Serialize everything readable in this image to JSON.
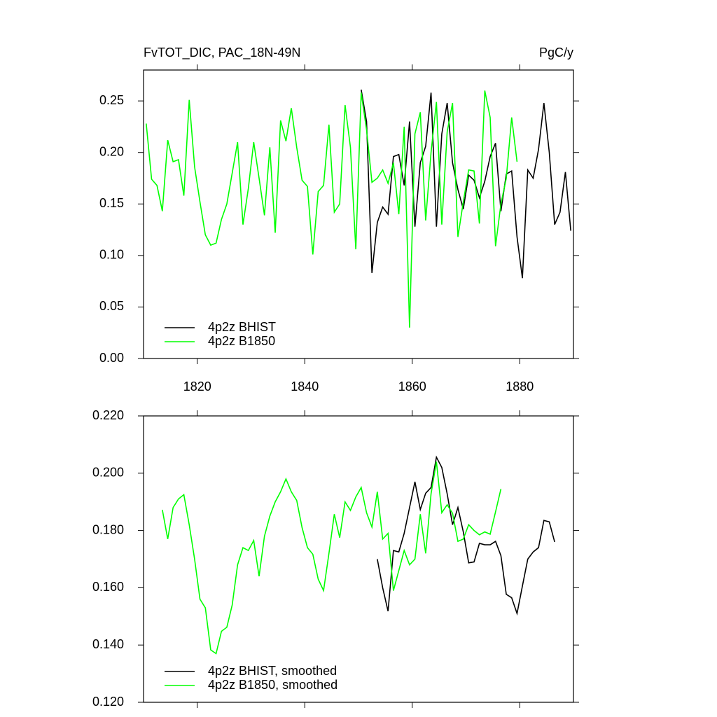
{
  "chart_data": [
    {
      "type": "line",
      "title": "FvTOT_DIC, PAC_18N-49N",
      "right_title": "PgC/y",
      "xlim": [
        1810,
        1890
      ],
      "xticks": [
        1820,
        1840,
        1860,
        1880
      ],
      "xtick_labels": true,
      "ylim": [
        0,
        0.28
      ],
      "yticks": [
        {
          "value": 0,
          "label": "0.00"
        },
        0.05,
        {
          "value": 0.1,
          "label": "0.10"
        },
        0.15,
        {
          "value": 0.2,
          "label": "0.20"
        },
        0.25
      ],
      "legend": "lower left",
      "series": [
        {
          "name": "4p2z BHIST",
          "color": "#000000",
          "x": [
            1850.5,
            1851.5,
            1852.5,
            1853.5,
            1854.5,
            1855.5,
            1856.5,
            1857.5,
            1858.5,
            1859.5,
            1860.5,
            1861.5,
            1862.5,
            1863.5,
            1864.5,
            1865.5,
            1866.5,
            1867.5,
            1868.5,
            1869.5,
            1870.5,
            1871.5,
            1872.5,
            1873.5,
            1874.5,
            1875.5,
            1876.5,
            1877.5,
            1878.5,
            1879.5,
            1880.5,
            1881.5,
            1882.5,
            1883.5,
            1884.5,
            1885.5,
            1886.5,
            1887.5,
            1888.5,
            1889.5
          ],
          "values": [
            0.261,
            0.23,
            0.083,
            0.132,
            0.147,
            0.14,
            0.196,
            0.198,
            0.168,
            0.23,
            0.128,
            0.19,
            0.206,
            0.258,
            0.128,
            0.218,
            0.248,
            0.19,
            0.164,
            0.145,
            0.178,
            0.173,
            0.156,
            0.172,
            0.196,
            0.209,
            0.143,
            0.179,
            0.182,
            0.118,
            0.078,
            0.183,
            0.175,
            0.203,
            0.248,
            0.2,
            0.13,
            0.142,
            0.181,
            0.124
          ]
        },
        {
          "name": "4p2z B1850",
          "color": "#00ff00",
          "x": [
            1810.5,
            1811.5,
            1812.5,
            1813.5,
            1814.5,
            1815.5,
            1816.5,
            1817.5,
            1818.5,
            1819.5,
            1820.5,
            1821.5,
            1822.5,
            1823.5,
            1824.5,
            1825.5,
            1826.5,
            1827.5,
            1828.5,
            1829.5,
            1830.5,
            1831.5,
            1832.5,
            1833.5,
            1834.5,
            1835.5,
            1836.5,
            1837.5,
            1838.5,
            1839.5,
            1840.5,
            1841.5,
            1842.5,
            1843.5,
            1844.5,
            1845.5,
            1846.5,
            1847.5,
            1848.5,
            1849.5,
            1850.5,
            1851.5,
            1852.5,
            1853.5,
            1854.5,
            1855.5,
            1856.5,
            1857.5,
            1858.5,
            1859.5,
            1860.5,
            1861.5,
            1862.5,
            1863.5,
            1864.5,
            1865.5,
            1866.5,
            1867.5,
            1868.5,
            1869.5,
            1870.5,
            1871.5,
            1872.5,
            1873.5,
            1874.5,
            1875.5,
            1876.5,
            1877.5,
            1878.5,
            1879.5
          ],
          "values": [
            0.228,
            0.174,
            0.168,
            0.143,
            0.212,
            0.191,
            0.193,
            0.158,
            0.251,
            0.186,
            0.152,
            0.12,
            0.11,
            0.112,
            0.135,
            0.15,
            0.18,
            0.21,
            0.13,
            0.165,
            0.21,
            0.175,
            0.139,
            0.205,
            0.122,
            0.231,
            0.211,
            0.243,
            0.205,
            0.173,
            0.167,
            0.101,
            0.162,
            0.168,
            0.227,
            0.142,
            0.15,
            0.246,
            0.205,
            0.106,
            0.258,
            0.222,
            0.171,
            0.175,
            0.183,
            0.17,
            0.19,
            0.14,
            0.225,
            0.03,
            0.218,
            0.239,
            0.134,
            0.2,
            0.249,
            0.13,
            0.22,
            0.248,
            0.118,
            0.152,
            0.183,
            0.182,
            0.131,
            0.26,
            0.234,
            0.109,
            0.15,
            0.175,
            0.234,
            0.191
          ]
        }
      ]
    },
    {
      "type": "line",
      "xlim": [
        1810,
        1890
      ],
      "xticks": [
        1820,
        1840,
        1860,
        1880
      ],
      "xtick_labels": false,
      "ylim": [
        0.12,
        0.22
      ],
      "yticks": [
        {
          "value": 0.12,
          "label": "0.120"
        },
        {
          "value": 0.14,
          "label": "0.140"
        },
        {
          "value": 0.16,
          "label": "0.160"
        },
        {
          "value": 0.18,
          "label": "0.180"
        },
        {
          "value": 0.2,
          "label": "0.200"
        },
        {
          "value": 0.22,
          "label": "0.220"
        }
      ],
      "legend": "lower left",
      "series": [
        {
          "name": "4p2z BHIST, smoothed",
          "color": "#000000",
          "x": [
            1853.5,
            1854.5,
            1855.5,
            1856.5,
            1857.5,
            1858.5,
            1859.5,
            1860.5,
            1861.5,
            1862.5,
            1863.5,
            1864.5,
            1865.5,
            1866.5,
            1867.5,
            1868.5,
            1869.5,
            1870.5,
            1871.5,
            1872.5,
            1873.5,
            1874.5,
            1875.5,
            1876.5,
            1877.5,
            1878.5,
            1879.5,
            1880.5,
            1881.5,
            1882.5,
            1883.5,
            1884.5,
            1885.5,
            1886.5
          ],
          "values": [
            0.17,
            0.16,
            0.1518,
            0.173,
            0.1725,
            0.179,
            0.188,
            0.197,
            0.1873,
            0.193,
            0.195,
            0.2056,
            0.202,
            0.1928,
            0.182,
            0.188,
            0.1795,
            0.1687,
            0.169,
            0.1755,
            0.175,
            0.175,
            0.1762,
            0.1712,
            0.1577,
            0.1565,
            0.151,
            0.1606,
            0.17,
            0.1725,
            0.174,
            0.1835,
            0.183,
            0.176
          ]
        },
        {
          "name": "4p2z B1850, smoothed",
          "color": "#00ff00",
          "x": [
            1813.5,
            1814.5,
            1815.5,
            1816.5,
            1817.5,
            1818.5,
            1819.5,
            1820.5,
            1821.5,
            1822.5,
            1823.5,
            1824.5,
            1825.5,
            1826.5,
            1827.5,
            1828.5,
            1829.5,
            1830.5,
            1831.5,
            1832.5,
            1833.5,
            1834.5,
            1835.5,
            1836.5,
            1837.5,
            1838.5,
            1839.5,
            1840.5,
            1841.5,
            1842.5,
            1843.5,
            1844.5,
            1845.5,
            1846.5,
            1847.5,
            1848.5,
            1849.5,
            1850.5,
            1851.5,
            1852.5,
            1853.5,
            1854.5,
            1855.5,
            1856.5,
            1857.5,
            1858.5,
            1859.5,
            1860.5,
            1861.5,
            1862.5,
            1863.5,
            1864.5,
            1865.5,
            1866.5,
            1867.5,
            1868.5,
            1869.5,
            1870.5,
            1871.5,
            1872.5,
            1873.5,
            1874.5,
            1875.5,
            1876.5
          ],
          "values": [
            0.1872,
            0.177,
            0.188,
            0.191,
            0.1925,
            0.182,
            0.17,
            0.156,
            0.153,
            0.1383,
            0.137,
            0.1448,
            0.1462,
            0.154,
            0.168,
            0.174,
            0.173,
            0.1765,
            0.164,
            0.178,
            0.185,
            0.19,
            0.1935,
            0.198,
            0.1935,
            0.1905,
            0.181,
            0.174,
            0.1717,
            0.163,
            0.159,
            0.172,
            0.1857,
            0.1775,
            0.19,
            0.187,
            0.1917,
            0.195,
            0.1862,
            0.1812,
            0.1935,
            0.177,
            0.179,
            0.159,
            0.166,
            0.173,
            0.168,
            0.17,
            0.1857,
            0.172,
            0.1928,
            0.204,
            0.1862,
            0.189,
            0.186,
            0.1762,
            0.177,
            0.182,
            0.18,
            0.1785,
            0.1795,
            0.1787,
            0.1865,
            0.1945
          ]
        }
      ]
    }
  ]
}
